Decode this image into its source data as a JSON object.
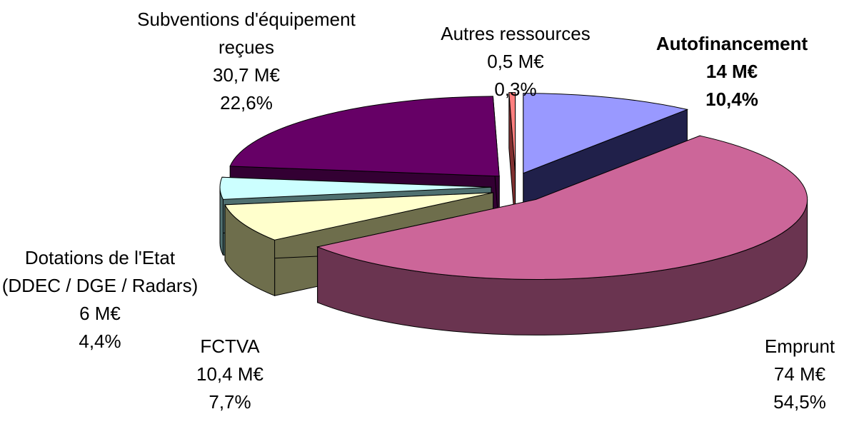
{
  "chart_data": {
    "type": "pie",
    "categories": [
      "Autofinancement",
      "Emprunt",
      "FCTVA",
      "Dotations de l'Etat (DDEC / DGE / Radars)",
      "Subventions d'équipement reçues",
      "Autres ressources"
    ],
    "values": [
      14,
      74,
      10.4,
      6,
      30.7,
      0.5
    ],
    "value_labels": [
      "14 M€",
      "74 M€",
      "10,4 M€",
      "6 M€",
      "30,7 M€",
      "0,5 M€"
    ],
    "percent_labels": [
      "10,4%",
      "54,5%",
      "7,7%",
      "4,4%",
      "22,6%",
      "0,3%"
    ],
    "colors": [
      "#9999ff",
      "#cc6699",
      "#ffffcc",
      "#ccffff",
      "#660066",
      "#ff8080"
    ],
    "side_colors": [
      "#20204a",
      "#6a3450",
      "#6e6e4c",
      "#4f7070",
      "#330033",
      "#803030"
    ]
  }
}
